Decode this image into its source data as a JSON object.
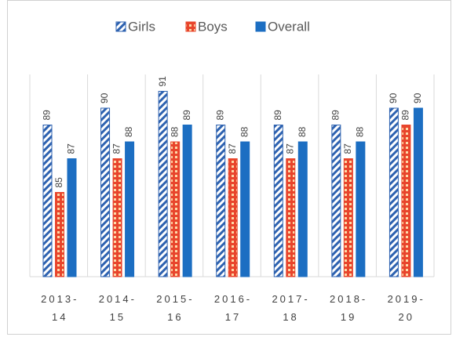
{
  "chart_data": {
    "type": "bar",
    "categories": [
      "2013-14",
      "2014-15",
      "2015-16",
      "2016-17",
      "2017-18",
      "2018-19",
      "2019-20"
    ],
    "series": [
      {
        "name": "Girls",
        "color": "#2e62b0",
        "pattern": "stripes",
        "values": [
          89,
          90,
          91,
          89,
          89,
          89,
          90
        ]
      },
      {
        "name": "Boys",
        "color": "#e8452c",
        "pattern": "checker",
        "values": [
          85,
          87,
          88,
          87,
          87,
          87,
          89
        ]
      },
      {
        "name": "Overall",
        "color": "#1c6ec2",
        "pattern": "solid",
        "values": [
          87,
          88,
          89,
          88,
          88,
          88,
          90
        ]
      }
    ],
    "ylim": [
      80,
      92
    ],
    "legend": "top"
  }
}
